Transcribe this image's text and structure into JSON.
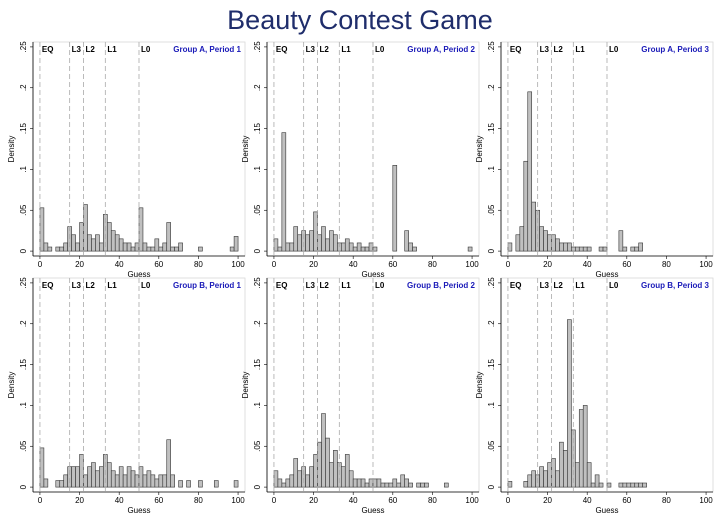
{
  "page_title": "Beauty Contest Game",
  "chart_data": [
    {
      "type": "histogram",
      "title": "Group A, Period 1",
      "x_label": "Guess",
      "y_label": "Density",
      "color": "#c0c0c0",
      "xlim": [
        -3.5,
        103.5
      ],
      "ylim": [
        -0.006,
        0.256
      ],
      "xticks": [
        0,
        20,
        40,
        60,
        80,
        100
      ],
      "yticks": [
        0,
        {
          "value": 0.05,
          "label": ".05"
        },
        {
          "value": 0.1,
          "label": ".1"
        },
        {
          "value": 0.15,
          "label": ".15"
        },
        {
          "value": 0.2,
          "label": ".2"
        },
        {
          "value": 0.25,
          "label": ".25"
        }
      ],
      "ref_lines": [
        {
          "label": "EQ",
          "x": 0
        },
        {
          "label": "L3",
          "x": 15
        },
        {
          "label": "L2",
          "x": 22
        },
        {
          "label": "L1",
          "x": 33
        },
        {
          "label": "L0",
          "x": 50
        }
      ],
      "bins": [
        0,
        2,
        4,
        6,
        8,
        10,
        12,
        14,
        16,
        18,
        20,
        22,
        24,
        26,
        28,
        30,
        32,
        34,
        36,
        38,
        40,
        42,
        44,
        46,
        48,
        50,
        52,
        54,
        56,
        58,
        60,
        62,
        64,
        66,
        68,
        70,
        72,
        74,
        76,
        78,
        80,
        82,
        84,
        86,
        88,
        90,
        92,
        94,
        96,
        98,
        100
      ],
      "values": [
        0.053,
        0.01,
        0.005,
        0,
        0.005,
        0.005,
        0.01,
        0.03,
        0.02,
        0.01,
        0.035,
        0.057,
        0.02,
        0.015,
        0.02,
        0.01,
        0.045,
        0.035,
        0.025,
        0.02,
        0.015,
        0.01,
        0.01,
        0.005,
        0.01,
        0.053,
        0.01,
        0.005,
        0.005,
        0.015,
        0.005,
        0.01,
        0.035,
        0.005,
        0.005,
        0.01,
        0,
        0,
        0,
        0,
        0.005,
        0,
        0,
        0,
        0,
        0,
        0,
        0,
        0.005,
        0.018
      ]
    },
    {
      "type": "histogram",
      "title": "Group A, Period 2",
      "x_label": "Guess",
      "y_label": "Density",
      "color": "#c0c0c0",
      "xlim": [
        -3.5,
        103.5
      ],
      "ylim": [
        -0.006,
        0.256
      ],
      "xticks": [
        0,
        20,
        40,
        60,
        80,
        100
      ],
      "yticks": [
        0,
        {
          "value": 0.05,
          "label": ".05"
        },
        {
          "value": 0.1,
          "label": ".1"
        },
        {
          "value": 0.15,
          "label": ".15"
        },
        {
          "value": 0.2,
          "label": ".2"
        },
        {
          "value": 0.25,
          "label": ".25"
        }
      ],
      "ref_lines": [
        {
          "label": "EQ",
          "x": 0
        },
        {
          "label": "L3",
          "x": 15
        },
        {
          "label": "L2",
          "x": 22
        },
        {
          "label": "L1",
          "x": 33
        },
        {
          "label": "L0",
          "x": 50
        }
      ],
      "bins": [
        0,
        2,
        4,
        6,
        8,
        10,
        12,
        14,
        16,
        18,
        20,
        22,
        24,
        26,
        28,
        30,
        32,
        34,
        36,
        38,
        40,
        42,
        44,
        46,
        48,
        50,
        52,
        54,
        56,
        58,
        60,
        62,
        64,
        66,
        68,
        70,
        72,
        74,
        76,
        78,
        80,
        82,
        84,
        86,
        88,
        90,
        92,
        94,
        96,
        98,
        100
      ],
      "values": [
        0.015,
        0.005,
        0.145,
        0.01,
        0.01,
        0.03,
        0.02,
        0.025,
        0.02,
        0.025,
        0.048,
        0.02,
        0.03,
        0.015,
        0.025,
        0.02,
        0.01,
        0.01,
        0.015,
        0.01,
        0.005,
        0.01,
        0.005,
        0.005,
        0.01,
        0.005,
        0,
        0,
        0,
        0,
        0.105,
        0,
        0,
        0.025,
        0.01,
        0.005,
        0,
        0,
        0,
        0,
        0,
        0,
        0,
        0,
        0,
        0,
        0,
        0,
        0,
        0.005
      ]
    },
    {
      "type": "histogram",
      "title": "Group A, Period 3",
      "x_label": "Guess",
      "y_label": "Density",
      "color": "#c0c0c0",
      "xlim": [
        -3.5,
        103.5
      ],
      "ylim": [
        -0.006,
        0.256
      ],
      "xticks": [
        0,
        20,
        40,
        60,
        80,
        100
      ],
      "yticks": [
        0,
        {
          "value": 0.05,
          "label": ".05"
        },
        {
          "value": 0.1,
          "label": ".1"
        },
        {
          "value": 0.15,
          "label": ".15"
        },
        {
          "value": 0.2,
          "label": ".2"
        },
        {
          "value": 0.25,
          "label": ".25"
        }
      ],
      "ref_lines": [
        {
          "label": "EQ",
          "x": 0
        },
        {
          "label": "L3",
          "x": 15
        },
        {
          "label": "L2",
          "x": 22
        },
        {
          "label": "L1",
          "x": 33
        },
        {
          "label": "L0",
          "x": 50
        }
      ],
      "bins": [
        0,
        2,
        4,
        6,
        8,
        10,
        12,
        14,
        16,
        18,
        20,
        22,
        24,
        26,
        28,
        30,
        32,
        34,
        36,
        38,
        40,
        42,
        44,
        46,
        48,
        50,
        52,
        54,
        56,
        58,
        60,
        62,
        64,
        66,
        68,
        70,
        72,
        74,
        76,
        78,
        80,
        82,
        84,
        86,
        88,
        90,
        92,
        94,
        96,
        98,
        100
      ],
      "values": [
        0.01,
        0,
        0.02,
        0.03,
        0.11,
        0.195,
        0.06,
        0.05,
        0.03,
        0.025,
        0.02,
        0.02,
        0.015,
        0.01,
        0.01,
        0.01,
        0.005,
        0.005,
        0.005,
        0.005,
        0.005,
        0,
        0,
        0.005,
        0.005,
        0,
        0,
        0,
        0.025,
        0.005,
        0,
        0.005,
        0.005,
        0.01,
        0,
        0,
        0,
        0,
        0,
        0,
        0,
        0,
        0,
        0,
        0,
        0,
        0,
        0,
        0,
        0
      ]
    },
    {
      "type": "histogram",
      "title": "Group B, Period 1",
      "x_label": "Guess",
      "y_label": "Density",
      "color": "#c0c0c0",
      "xlim": [
        -3.5,
        103.5
      ],
      "ylim": [
        -0.006,
        0.256
      ],
      "xticks": [
        0,
        20,
        40,
        60,
        80,
        100
      ],
      "yticks": [
        0,
        {
          "value": 0.05,
          "label": ".05"
        },
        {
          "value": 0.1,
          "label": ".1"
        },
        {
          "value": 0.15,
          "label": ".15"
        },
        {
          "value": 0.2,
          "label": ".2"
        },
        {
          "value": 0.25,
          "label": ".25"
        }
      ],
      "ref_lines": [
        {
          "label": "EQ",
          "x": 0
        },
        {
          "label": "L3",
          "x": 15
        },
        {
          "label": "L2",
          "x": 22
        },
        {
          "label": "L1",
          "x": 33
        },
        {
          "label": "L0",
          "x": 50
        }
      ],
      "bins": [
        0,
        2,
        4,
        6,
        8,
        10,
        12,
        14,
        16,
        18,
        20,
        22,
        24,
        26,
        28,
        30,
        32,
        34,
        36,
        38,
        40,
        42,
        44,
        46,
        48,
        50,
        52,
        54,
        56,
        58,
        60,
        62,
        64,
        66,
        68,
        70,
        72,
        74,
        76,
        78,
        80,
        82,
        84,
        86,
        88,
        90,
        92,
        94,
        96,
        98,
        100
      ],
      "values": [
        0.048,
        0.01,
        0,
        0,
        0.008,
        0.008,
        0.015,
        0.025,
        0.025,
        0.025,
        0.04,
        0.015,
        0.025,
        0.03,
        0.02,
        0.025,
        0.04,
        0.03,
        0.02,
        0.015,
        0.025,
        0.015,
        0.025,
        0.02,
        0.015,
        0.025,
        0.015,
        0.02,
        0.015,
        0.01,
        0.015,
        0.015,
        0.058,
        0.015,
        0,
        0.008,
        0,
        0.008,
        0,
        0,
        0.008,
        0,
        0,
        0,
        0.008,
        0,
        0,
        0,
        0,
        0.008
      ]
    },
    {
      "type": "histogram",
      "title": "Group B, Period 2",
      "x_label": "Guess",
      "y_label": "Density",
      "color": "#c0c0c0",
      "xlim": [
        -3.5,
        103.5
      ],
      "ylim": [
        -0.006,
        0.256
      ],
      "xticks": [
        0,
        20,
        40,
        60,
        80,
        100
      ],
      "yticks": [
        0,
        {
          "value": 0.05,
          "label": ".05"
        },
        {
          "value": 0.1,
          "label": ".1"
        },
        {
          "value": 0.15,
          "label": ".15"
        },
        {
          "value": 0.2,
          "label": ".2"
        },
        {
          "value": 0.25,
          "label": ".25"
        }
      ],
      "ref_lines": [
        {
          "label": "EQ",
          "x": 0
        },
        {
          "label": "L3",
          "x": 15
        },
        {
          "label": "L2",
          "x": 22
        },
        {
          "label": "L1",
          "x": 33
        },
        {
          "label": "L0",
          "x": 50
        }
      ],
      "bins": [
        0,
        2,
        4,
        6,
        8,
        10,
        12,
        14,
        16,
        18,
        20,
        22,
        24,
        26,
        28,
        30,
        32,
        34,
        36,
        38,
        40,
        42,
        44,
        46,
        48,
        50,
        52,
        54,
        56,
        58,
        60,
        62,
        64,
        66,
        68,
        70,
        72,
        74,
        76,
        78,
        80,
        82,
        84,
        86,
        88,
        90,
        92,
        94,
        96,
        98,
        100
      ],
      "values": [
        0.02,
        0.01,
        0.005,
        0.01,
        0.015,
        0.035,
        0.02,
        0.025,
        0.015,
        0.025,
        0.04,
        0.055,
        0.09,
        0.06,
        0.03,
        0.045,
        0.03,
        0.025,
        0.04,
        0.02,
        0.01,
        0.01,
        0.01,
        0.005,
        0.01,
        0.01,
        0.01,
        0.005,
        0.005,
        0.005,
        0.01,
        0.005,
        0.015,
        0.01,
        0.005,
        0,
        0.005,
        0.005,
        0.005,
        0,
        0,
        0,
        0,
        0.005,
        0,
        0,
        0,
        0,
        0,
        0
      ]
    },
    {
      "type": "histogram",
      "title": "Group B, Period 3",
      "x_label": "Guess",
      "y_label": "Density",
      "color": "#c0c0c0",
      "xlim": [
        -3.5,
        103.5
      ],
      "ylim": [
        -0.006,
        0.256
      ],
      "xticks": [
        0,
        20,
        40,
        60,
        80,
        100
      ],
      "yticks": [
        0,
        {
          "value": 0.05,
          "label": ".05"
        },
        {
          "value": 0.1,
          "label": ".1"
        },
        {
          "value": 0.15,
          "label": ".15"
        },
        {
          "value": 0.2,
          "label": ".2"
        },
        {
          "value": 0.25,
          "label": ".25"
        }
      ],
      "ref_lines": [
        {
          "label": "EQ",
          "x": 0
        },
        {
          "label": "L3",
          "x": 15
        },
        {
          "label": "L2",
          "x": 22
        },
        {
          "label": "L1",
          "x": 33
        },
        {
          "label": "L0",
          "x": 50
        }
      ],
      "bins": [
        0,
        2,
        4,
        6,
        8,
        10,
        12,
        14,
        16,
        18,
        20,
        22,
        24,
        26,
        28,
        30,
        32,
        34,
        36,
        38,
        40,
        42,
        44,
        46,
        48,
        50,
        52,
        54,
        56,
        58,
        60,
        62,
        64,
        66,
        68,
        70,
        72,
        74,
        76,
        78,
        80,
        82,
        84,
        86,
        88,
        90,
        92,
        94,
        96,
        98,
        100
      ],
      "values": [
        0.007,
        0,
        0,
        0,
        0.007,
        0.015,
        0.02,
        0.015,
        0.025,
        0.02,
        0.03,
        0.035,
        0.02,
        0.055,
        0.045,
        0.205,
        0.07,
        0.03,
        0.095,
        0.1,
        0.03,
        0.005,
        0.015,
        0.005,
        0,
        0.005,
        0,
        0,
        0.005,
        0.005,
        0.005,
        0.005,
        0.005,
        0.005,
        0.005,
        0,
        0,
        0,
        0,
        0,
        0,
        0,
        0,
        0,
        0,
        0,
        0,
        0,
        0,
        0
      ]
    }
  ]
}
